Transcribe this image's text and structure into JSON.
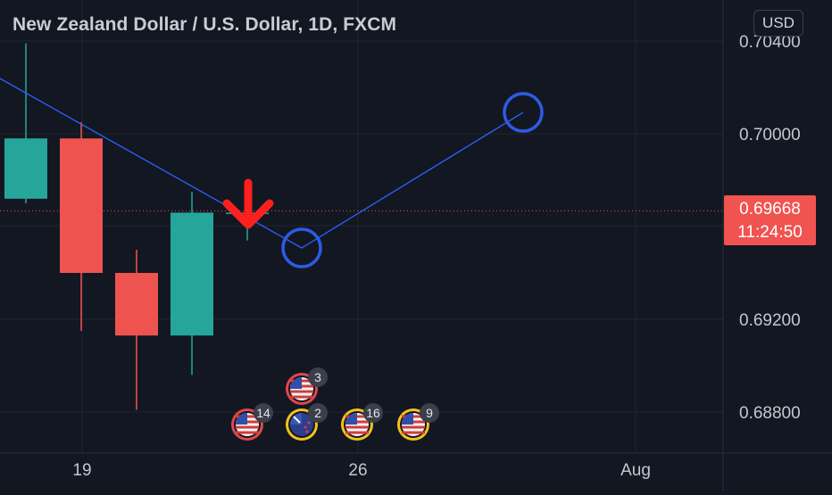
{
  "header": {
    "title": "New Zealand Dollar / U.S. Dollar, 1D, FXCM",
    "currency_button": "USD"
  },
  "price_tag": {
    "price": "0.69668",
    "countdown": "11:24:50"
  },
  "colors": {
    "background": "#131722",
    "up": "#26a69a",
    "down": "#ef5350",
    "trendline": "#2962ff",
    "arrow": "#ff1f1f",
    "grid": "#1f2430"
  },
  "chart_data": {
    "type": "candlestick",
    "title": "New Zealand Dollar / U.S. Dollar, 1D, FXCM",
    "y_axis": {
      "ticks": [
        0.704,
        0.7,
        0.692,
        0.688
      ],
      "tick_labels": [
        "0.70400",
        "0.70000",
        "0.69200",
        "0.68800"
      ],
      "range": [
        0.6865,
        0.706
      ]
    },
    "x_axis": {
      "tick_labels": [
        "19",
        "26",
        "Aug"
      ]
    },
    "candles": [
      {
        "open": 0.6972,
        "high": 0.7039,
        "low": 0.697,
        "close": 0.6998
      },
      {
        "open": 0.6998,
        "high": 0.7005,
        "low": 0.6915,
        "close": 0.694
      },
      {
        "open": 0.694,
        "high": 0.695,
        "low": 0.6881,
        "close": 0.6913
      },
      {
        "open": 0.6913,
        "high": 0.6975,
        "low": 0.6896,
        "close": 0.6966
      },
      {
        "open": 0.6966,
        "high": 0.6967,
        "low": 0.6954,
        "close": 0.6966
      }
    ],
    "current_price": 0.69668,
    "grid": true,
    "events": [
      {
        "flag": "us",
        "count": "3",
        "ring": "red"
      },
      {
        "flag": "us",
        "count": "14",
        "ring": "red"
      },
      {
        "flag": "nz",
        "count": "2",
        "ring": "yellow"
      },
      {
        "flag": "us",
        "count": "16",
        "ring": "yellow"
      },
      {
        "flag": "us",
        "count": "9",
        "ring": "yellow"
      }
    ]
  }
}
